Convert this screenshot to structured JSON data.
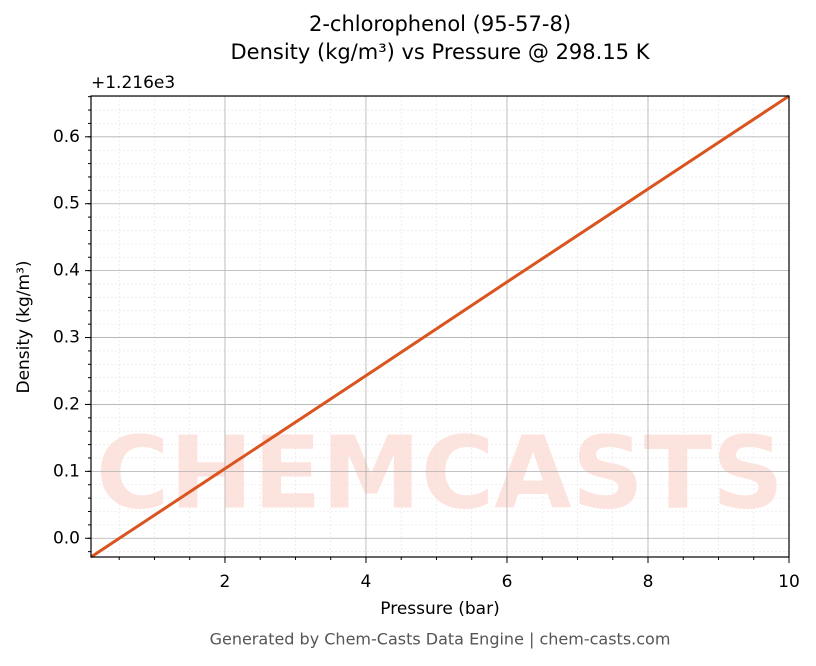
{
  "chart_data": {
    "type": "line",
    "title": "2-chlorophenol (95-57-8)",
    "subtitle": "Density (kg/m³) vs Pressure @ 298.15 K",
    "x_label": "Pressure (bar)",
    "y_label": "Density (kg/m³)",
    "y_offset_label": "+1.216e3",
    "watermark": "CHEMCASTS",
    "footer": "Generated by Chem-Casts Data Engine | chem-casts.com",
    "x": [
      0.1,
      2,
      4,
      6,
      8,
      10
    ],
    "series": [
      {
        "name": "Density",
        "color": "#d9541e",
        "values": [
          -0.028,
          0.104,
          0.243,
          0.383,
          0.522,
          0.661
        ]
      }
    ],
    "xlim": [
      0.1,
      10
    ],
    "ylim": [
      -0.028,
      0.661
    ],
    "xticks": [
      2,
      4,
      6,
      8,
      10
    ],
    "yticks": [
      {
        "value": 0,
        "label": "0.0"
      },
      0.1,
      0.2,
      0.3,
      0.4,
      0.5,
      0.6
    ],
    "grid": true
  }
}
